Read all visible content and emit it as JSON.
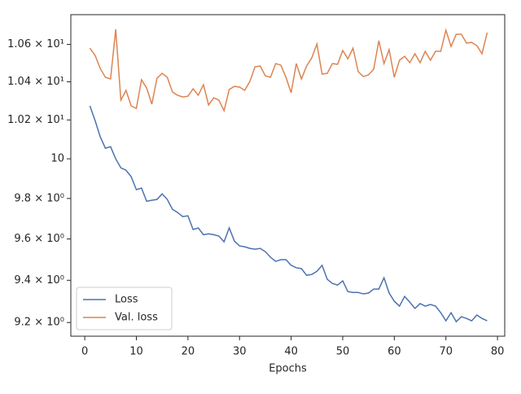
{
  "chart_data": {
    "type": "line",
    "xlabel": "Epochs",
    "x": [
      1,
      2,
      3,
      4,
      5,
      6,
      7,
      8,
      9,
      10,
      11,
      12,
      13,
      14,
      15,
      16,
      17,
      18,
      19,
      20,
      21,
      22,
      23,
      24,
      25,
      26,
      27,
      28,
      29,
      30,
      31,
      32,
      33,
      34,
      35,
      36,
      37,
      38,
      39,
      40,
      41,
      42,
      43,
      44,
      45,
      46,
      47,
      48,
      49,
      50,
      51,
      52,
      53,
      54,
      55,
      56,
      57,
      58,
      59,
      60,
      61,
      62,
      63,
      64,
      65,
      66,
      67,
      68,
      69,
      70,
      71,
      72,
      73,
      74,
      75,
      76,
      77,
      78
    ],
    "series": [
      {
        "name": "Loss",
        "color": "#4c72b0",
        "values": [
          10.273,
          10.197,
          10.113,
          10.054,
          10.062,
          10.0,
          9.954,
          9.942,
          9.909,
          9.844,
          9.852,
          9.786,
          9.791,
          9.795,
          9.823,
          9.795,
          9.746,
          9.73,
          9.71,
          9.714,
          9.646,
          9.654,
          9.621,
          9.625,
          9.621,
          9.614,
          9.586,
          9.654,
          9.59,
          9.566,
          9.562,
          9.554,
          9.55,
          9.554,
          9.538,
          9.511,
          9.491,
          9.499,
          9.499,
          9.472,
          9.46,
          9.456,
          9.424,
          9.428,
          9.443,
          9.472,
          9.405,
          9.385,
          9.377,
          9.397,
          9.346,
          9.342,
          9.342,
          9.335,
          9.339,
          9.358,
          9.358,
          9.412,
          9.339,
          9.3,
          9.277,
          9.323,
          9.296,
          9.266,
          9.289,
          9.277,
          9.285,
          9.277,
          9.246,
          9.208,
          9.246,
          9.204,
          9.227,
          9.219,
          9.208,
          9.235,
          9.219,
          9.208
        ]
      },
      {
        "name": "Val. loss",
        "color": "#dd8452",
        "values": [
          10.58,
          10.541,
          10.471,
          10.424,
          10.415,
          10.682,
          10.303,
          10.355,
          10.273,
          10.26,
          10.411,
          10.367,
          10.282,
          10.419,
          10.445,
          10.424,
          10.346,
          10.329,
          10.32,
          10.324,
          10.363,
          10.329,
          10.385,
          10.278,
          10.316,
          10.303,
          10.248,
          10.359,
          10.376,
          10.372,
          10.355,
          10.402,
          10.48,
          10.484,
          10.432,
          10.424,
          10.497,
          10.489,
          10.424,
          10.342,
          10.497,
          10.415,
          10.484,
          10.528,
          10.602,
          10.441,
          10.445,
          10.497,
          10.493,
          10.567,
          10.523,
          10.58,
          10.454,
          10.428,
          10.437,
          10.467,
          10.62,
          10.497,
          10.572,
          10.424,
          10.515,
          10.536,
          10.502,
          10.55,
          10.502,
          10.563,
          10.515,
          10.563,
          10.563,
          10.677,
          10.589,
          10.655,
          10.655,
          10.607,
          10.611,
          10.593,
          10.55,
          10.664
        ]
      }
    ],
    "xlim": [
      -2.7,
      81.4
    ],
    "xticks": [
      0,
      10,
      20,
      30,
      40,
      50,
      60,
      70,
      80
    ],
    "ylim": [
      9.136,
      10.762
    ],
    "yscale": "log",
    "yticks": [
      {
        "value": 9.2,
        "label": "9.2 × 10⁰"
      },
      {
        "value": 9.4,
        "label": "9.4 × 10⁰"
      },
      {
        "value": 9.6,
        "label": "9.6 × 10⁰"
      },
      {
        "value": 9.8,
        "label": "9.8 × 10⁰"
      },
      10,
      {
        "value": 10.2,
        "label": "1.02 × 10¹"
      },
      {
        "value": 10.4,
        "label": "1.04 × 10¹"
      },
      {
        "value": 10.6,
        "label": "1.06 × 10¹"
      }
    ],
    "legend": "lower left",
    "grid": false
  }
}
